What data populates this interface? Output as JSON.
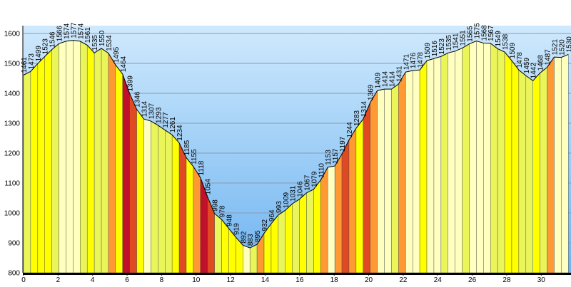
{
  "chart_data": {
    "type": "elevation_profile",
    "x": [
      0,
      0.41,
      0.82,
      1.23,
      1.64,
      2.05,
      2.46,
      2.87,
      3.28,
      3.69,
      4.1,
      4.51,
      4.92,
      5.33,
      5.74,
      6.15,
      6.56,
      6.97,
      7.38,
      7.79,
      8.2,
      8.61,
      9.02,
      9.43,
      9.84,
      10.25,
      10.66,
      11.07,
      11.48,
      11.89,
      12.3,
      12.71,
      13.12,
      13.53,
      13.94,
      14.35,
      14.76,
      15.17,
      15.58,
      15.99,
      16.4,
      16.81,
      17.22,
      17.63,
      18.04,
      18.45,
      18.86,
      19.27,
      19.68,
      20.09,
      20.5,
      20.91,
      21.32,
      21.73,
      22.14,
      22.55,
      22.96,
      23.37,
      23.78,
      24.19,
      24.6,
      25.01,
      25.42,
      25.83,
      26.24,
      26.65,
      27.06,
      27.47,
      27.88,
      28.29,
      28.7,
      29.11,
      29.52,
      29.93,
      30.34,
      30.75,
      31.16,
      31.57
    ],
    "values": [
      1461,
      1473,
      1499,
      1523,
      1546,
      1566,
      1574,
      1577,
      1574,
      1561,
      1535,
      1550,
      1534,
      1495,
      1464,
      1399,
      1346,
      1314,
      1307,
      1293,
      1277,
      1261,
      1234,
      1185,
      1155,
      1118,
      1054,
      998,
      978,
      948,
      919,
      892,
      883,
      895,
      932,
      964,
      993,
      1009,
      1031,
      1046,
      1067,
      1079,
      1110,
      1153,
      1157,
      1197,
      1244,
      1283,
      1314,
      1369,
      1409,
      1414,
      1414,
      1431,
      1471,
      1476,
      1478,
      1509,
      1516,
      1523,
      1535,
      1541,
      1551,
      1565,
      1575,
      1568,
      1567,
      1549,
      1538,
      1509,
      1478,
      1459,
      1442,
      1468,
      1487,
      1521,
      1520,
      1530
    ],
    "xlim": [
      0,
      31.6
    ],
    "xticks": [
      0,
      2,
      4,
      6,
      8,
      10,
      12,
      14,
      16,
      18,
      20,
      22,
      24,
      26,
      28,
      30
    ],
    "ylim": [
      800,
      1600
    ],
    "yticks": [
      800,
      900,
      1000,
      1100,
      1200,
      1300,
      1400,
      1500,
      1600
    ],
    "grid": true,
    "slope_colors": [
      "#ffffc0",
      "#eaf55a",
      "#ffff00",
      "#ff9933",
      "#e04a22",
      "#c0102a"
    ]
  }
}
